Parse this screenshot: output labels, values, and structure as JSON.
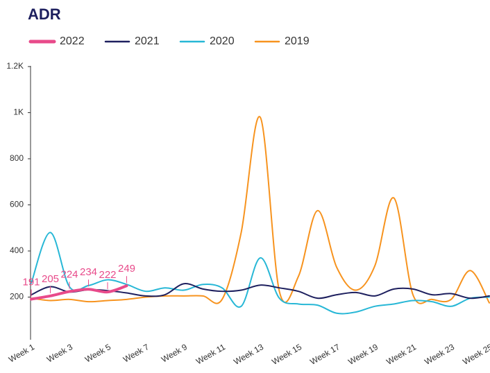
{
  "chart_data": {
    "type": "line",
    "title": "ADR",
    "categories": [
      "Week 1",
      null,
      "Week 3",
      null,
      "Week 5",
      null,
      "Week 7",
      null,
      "Week 9",
      null,
      "Week 11",
      null,
      "Week 13",
      null,
      "Week 15",
      null,
      "Week 17",
      null,
      "Week 19",
      null,
      "Week 21",
      null,
      "Week 23",
      null,
      "Week 25"
    ],
    "series": [
      {
        "name": "2022",
        "color": "#e84a8a",
        "values": [
          191,
          205,
          224,
          234,
          222,
          249,
          null,
          null,
          null,
          null,
          null,
          null,
          null,
          null,
          null,
          null,
          null,
          null,
          null,
          null,
          null,
          null,
          null,
          null,
          null
        ]
      },
      {
        "name": "2021",
        "color": "#1d1f5e",
        "values": [
          210,
          245,
          222,
          232,
          228,
          218,
          205,
          210,
          258,
          235,
          225,
          230,
          252,
          240,
          225,
          195,
          210,
          220,
          205,
          235,
          235,
          210,
          215,
          195,
          205
        ]
      },
      {
        "name": "2020",
        "color": "#27b7d6",
        "values": [
          260,
          480,
          245,
          250,
          275,
          255,
          225,
          240,
          230,
          255,
          240,
          160,
          370,
          195,
          170,
          165,
          130,
          135,
          160,
          170,
          185,
          180,
          160,
          195,
          200
        ]
      },
      {
        "name": "2019",
        "color": "#f7931e",
        "values": [
          195,
          185,
          190,
          180,
          185,
          190,
          200,
          205,
          205,
          205,
          190,
          480,
          980,
          225,
          290,
          575,
          330,
          230,
          335,
          630,
          210,
          190,
          190,
          315,
          175
        ]
      }
    ],
    "ylim": [
      0,
      1200
    ],
    "yticks": [
      200,
      400,
      600,
      800,
      {
        "value": 1000,
        "label": "1K"
      },
      {
        "value": 1200,
        "label": "1.2K"
      }
    ]
  }
}
